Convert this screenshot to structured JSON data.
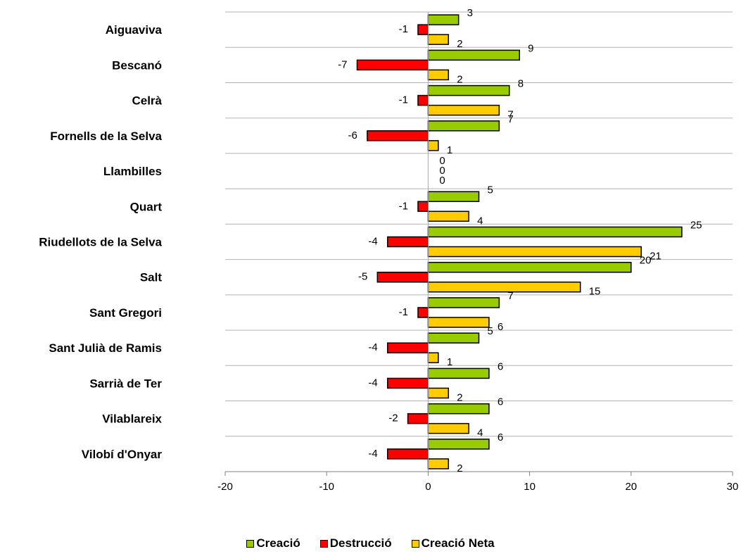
{
  "chart_data": {
    "type": "bar",
    "orientation": "horizontal",
    "categories": [
      "Aiguaviva",
      "Bescanó",
      "Celrà",
      "Fornells de la Selva",
      "Llambilles",
      "Quart",
      "Riudellots de la Selva",
      "Salt",
      "Sant Gregori",
      "Sant Julià de Ramis",
      "Sarrià de Ter",
      "Vilablareix",
      "Vilobí d'Onyar"
    ],
    "series": [
      {
        "name": "Creació",
        "color": "#99cc00",
        "values": [
          3,
          9,
          8,
          7,
          0,
          5,
          25,
          20,
          7,
          5,
          6,
          6,
          6
        ]
      },
      {
        "name": "Destrucció",
        "color": "#ff0000",
        "values": [
          -1,
          -7,
          -1,
          -6,
          0,
          -1,
          -4,
          -5,
          -1,
          -4,
          -4,
          -2,
          -4
        ]
      },
      {
        "name": "Creació Neta",
        "color": "#ffcc00",
        "values": [
          2,
          2,
          7,
          1,
          0,
          4,
          21,
          15,
          6,
          1,
          2,
          4,
          2
        ]
      }
    ],
    "xlim": [
      -20,
      30
    ],
    "xticks": [
      -20,
      -10,
      0,
      10,
      20,
      30
    ],
    "grid": "horizontal separators between categories",
    "legend_position": "bottom",
    "title": "",
    "xlabel": "",
    "ylabel": ""
  }
}
